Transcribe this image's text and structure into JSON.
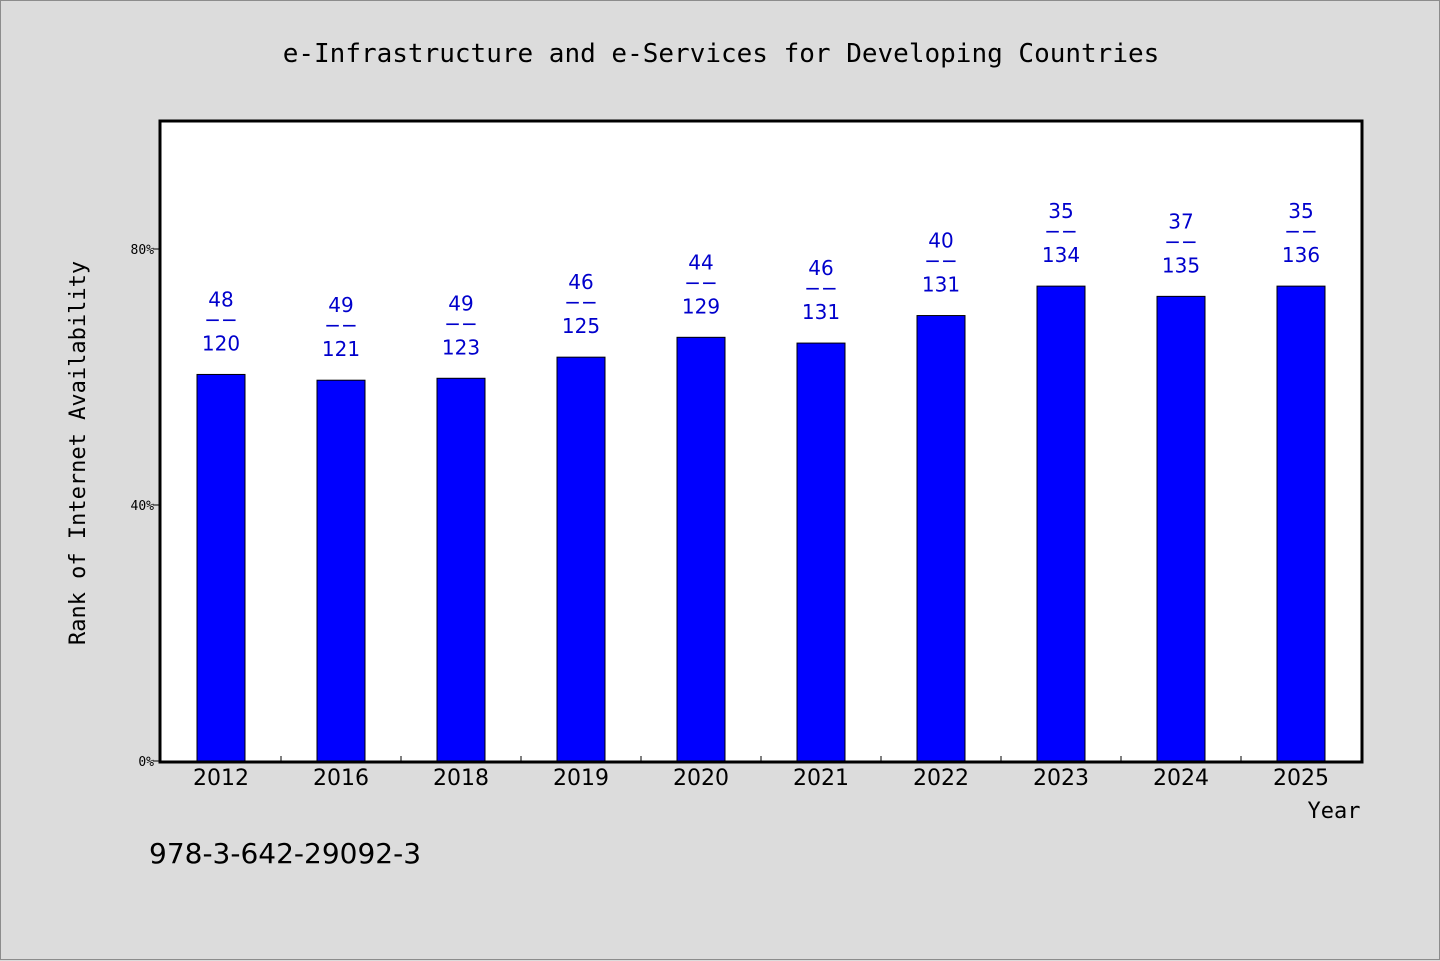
{
  "chart_data": {
    "type": "bar",
    "title": "e-Infrastructure and e-Services for Developing Countries",
    "xlabel": "Year",
    "ylabel": "Rank of Internet Availability",
    "ylim": [
      0,
      100
    ],
    "yticks": [
      0,
      40,
      80
    ],
    "ytick_labels": [
      "0%",
      "40%",
      "80%"
    ],
    "grid": false,
    "bar_color": "#0000ff",
    "label_color": "#0000cc",
    "categories": [
      "2012",
      "2016",
      "2018",
      "2019",
      "2020",
      "2021",
      "2022",
      "2023",
      "2024",
      "2025"
    ],
    "values": [
      60.4,
      59.5,
      59.8,
      63.1,
      66.2,
      65.3,
      69.6,
      74.2,
      72.6,
      74.2
    ],
    "label_top": [
      "48",
      "49",
      "49",
      "46",
      "44",
      "46",
      "40",
      "35",
      "37",
      "35"
    ],
    "label_bottom": [
      "120",
      "121",
      "123",
      "125",
      "129",
      "131",
      "131",
      "134",
      "135",
      "136"
    ],
    "label_separator": "−−"
  },
  "footer": {
    "isbn": "978-3-642-29092-3"
  }
}
